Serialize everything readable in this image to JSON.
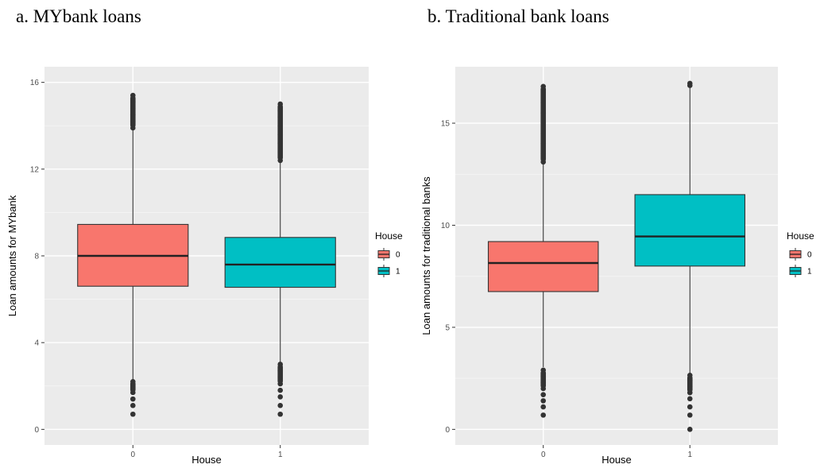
{
  "chart_data": [
    {
      "type": "boxplot",
      "title": "a. MYbank loans",
      "xlabel": "House",
      "ylabel": "Loan amounts for MYbank",
      "ylim": [
        0,
        16
      ],
      "y_ticks": [
        0,
        4,
        8,
        12,
        16
      ],
      "categories": [
        "0",
        "1"
      ],
      "colors": [
        "#F8766D",
        "#00BFC4"
      ],
      "boxes": [
        {
          "category": "0",
          "q1": 6.6,
          "median": 8.0,
          "q3": 9.45,
          "whisker_low": 2.3,
          "whisker_high": 13.8,
          "outliers_low": [
            0.7,
            1.1,
            1.4,
            1.7,
            1.9,
            2.1,
            2.2
          ],
          "outliers_high": [
            13.9,
            14.2,
            14.5,
            14.8,
            15.1,
            15.4
          ]
        },
        {
          "category": "1",
          "q1": 6.55,
          "median": 7.6,
          "q3": 8.85,
          "whisker_low": 3.1,
          "whisker_high": 12.3,
          "outliers_low": [
            0.7,
            1.1,
            1.5,
            1.8,
            2.1,
            2.4,
            2.7,
            3.0
          ],
          "outliers_high": [
            12.4,
            12.8,
            13.2,
            13.6,
            14.0,
            14.4,
            14.7,
            15.0
          ]
        }
      ],
      "legend": {
        "title": "House",
        "entries": [
          "0",
          "1"
        ]
      },
      "grid": true
    },
    {
      "type": "boxplot",
      "title": "b. Traditional bank loans",
      "xlabel": "House",
      "ylabel": "Loan amounts for traditional banks",
      "ylim": [
        0,
        17
      ],
      "y_ticks": [
        0,
        5,
        10,
        15
      ],
      "categories": [
        "0",
        "1"
      ],
      "colors": [
        "#F8766D",
        "#00BFC4"
      ],
      "boxes": [
        {
          "category": "0",
          "q1": 6.75,
          "median": 8.15,
          "q3": 9.2,
          "whisker_low": 3.05,
          "whisker_high": 13.0,
          "outliers_low": [
            0.7,
            1.1,
            1.4,
            1.7,
            2.0,
            2.3,
            2.6,
            2.9
          ],
          "outliers_high": [
            13.1,
            13.5,
            14.0,
            14.5,
            15.0,
            15.5,
            16.0,
            16.5,
            16.8
          ]
        },
        {
          "category": "1",
          "q1": 8.0,
          "median": 9.45,
          "q3": 11.5,
          "whisker_low": 2.75,
          "whisker_high": 16.75,
          "outliers_low": [
            0.0,
            0.7,
            1.1,
            1.5,
            1.8,
            2.1,
            2.4,
            2.65
          ],
          "outliers_high": [
            16.85,
            16.95
          ]
        }
      ],
      "legend": {
        "title": "House",
        "entries": [
          "0",
          "1"
        ]
      },
      "grid": true
    }
  ]
}
